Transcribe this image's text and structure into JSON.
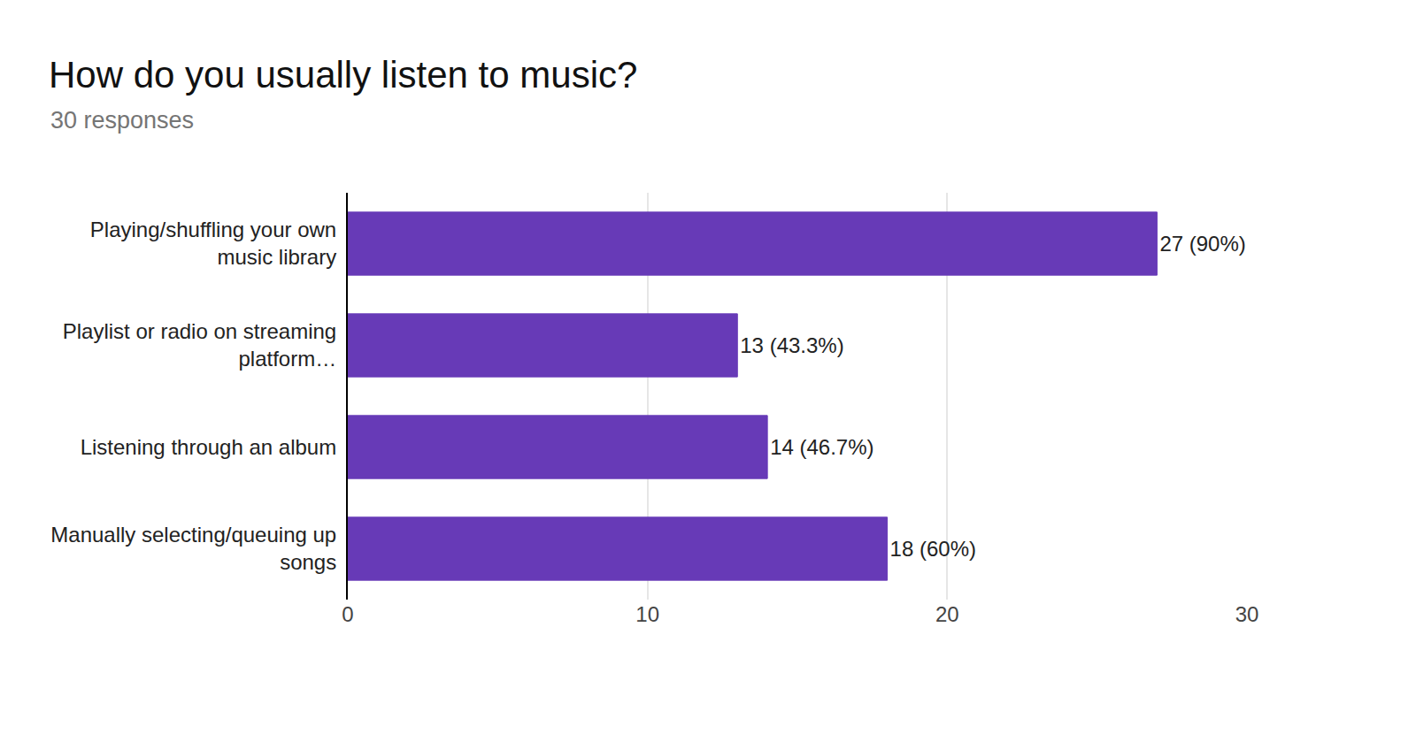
{
  "chart_data": {
    "type": "bar",
    "title": "How do you usually listen to music?",
    "subtitle": "30 responses",
    "orientation": "horizontal",
    "categories": [
      "Playing/shuffling your own music library",
      "Playlist or radio on streaming platform…",
      "Listening through an album",
      "Manually selecting/queuing up songs"
    ],
    "values": [
      27,
      13,
      14,
      18
    ],
    "value_labels": [
      "27 (90%)",
      "13 (43.3%)",
      "14 (46.7%)",
      "18 (60%)"
    ],
    "data_labels": true,
    "color": "#673ab7",
    "xlim": [
      0,
      30
    ],
    "xticks": [
      0,
      10,
      20,
      30
    ],
    "grid": true
  }
}
